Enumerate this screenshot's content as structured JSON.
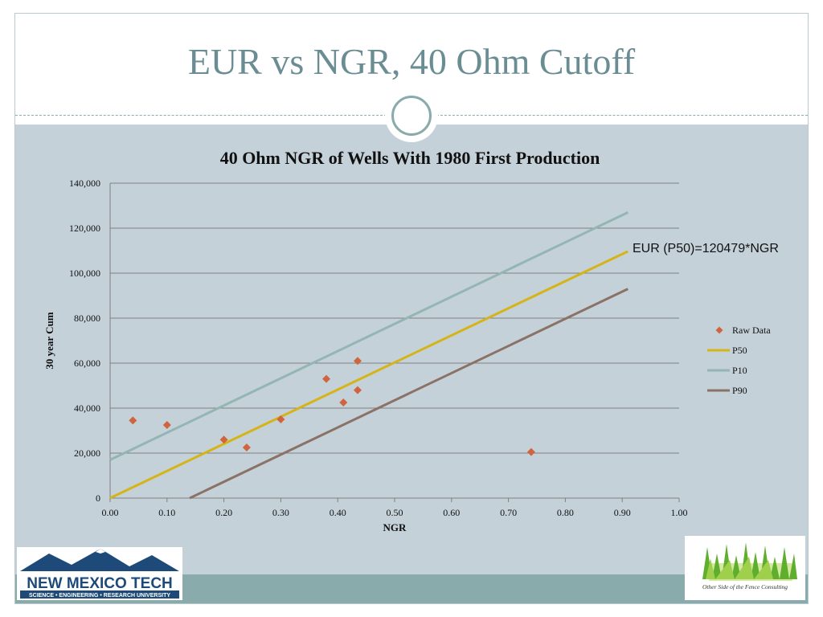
{
  "slide": {
    "title": "EUR vs NGR, 40 Ohm Cutoff"
  },
  "annotation": "EUR (P50)=120479*NGR",
  "logos": {
    "nmt_name": "NEW MEXICO TECH",
    "nmt_tagline": "SCIENCE • ENGINEERING • RESEARCH UNIVERSITY",
    "fence_name": "Other Side of the Fence Consulting"
  },
  "colors": {
    "background": "#c5d1d9",
    "raw_data": "#d0643e",
    "p50": "#d4b416",
    "p10": "#93b5b3",
    "p90": "#8a7266",
    "title": "#6a8d93"
  },
  "chart_data": {
    "type": "scatter",
    "title": "40 Ohm NGR of Wells With 1980 First Production",
    "xlabel": "NGR",
    "ylabel": "30 year Cum",
    "xlim": [
      0,
      1.0
    ],
    "ylim": [
      0,
      140000
    ],
    "xticks": [
      "0.00",
      "0.10",
      "0.20",
      "0.30",
      "0.40",
      "0.50",
      "0.60",
      "0.70",
      "0.80",
      "0.90",
      "1.00"
    ],
    "yticks": [
      "0",
      "20,000",
      "40,000",
      "60,000",
      "80,000",
      "100,000",
      "120,000",
      "140,000"
    ],
    "grid": "horizontal",
    "legend_position": "right",
    "series": [
      {
        "name": "Raw Data",
        "kind": "scatter",
        "points": [
          [
            0.04,
            34500
          ],
          [
            0.1,
            32500
          ],
          [
            0.2,
            26000
          ],
          [
            0.24,
            22500
          ],
          [
            0.3,
            35000
          ],
          [
            0.38,
            53000
          ],
          [
            0.41,
            42500
          ],
          [
            0.435,
            48000
          ],
          [
            0.435,
            61000
          ],
          [
            0.74,
            20500
          ]
        ]
      },
      {
        "name": "P50",
        "kind": "line",
        "points": [
          [
            0.0,
            0
          ],
          [
            0.91,
            109700
          ]
        ]
      },
      {
        "name": "P10",
        "kind": "line",
        "points": [
          [
            0.0,
            17000
          ],
          [
            0.91,
            127000
          ]
        ]
      },
      {
        "name": "P90",
        "kind": "line",
        "points": [
          [
            0.14,
            0
          ],
          [
            0.91,
            93000
          ]
        ]
      }
    ]
  }
}
